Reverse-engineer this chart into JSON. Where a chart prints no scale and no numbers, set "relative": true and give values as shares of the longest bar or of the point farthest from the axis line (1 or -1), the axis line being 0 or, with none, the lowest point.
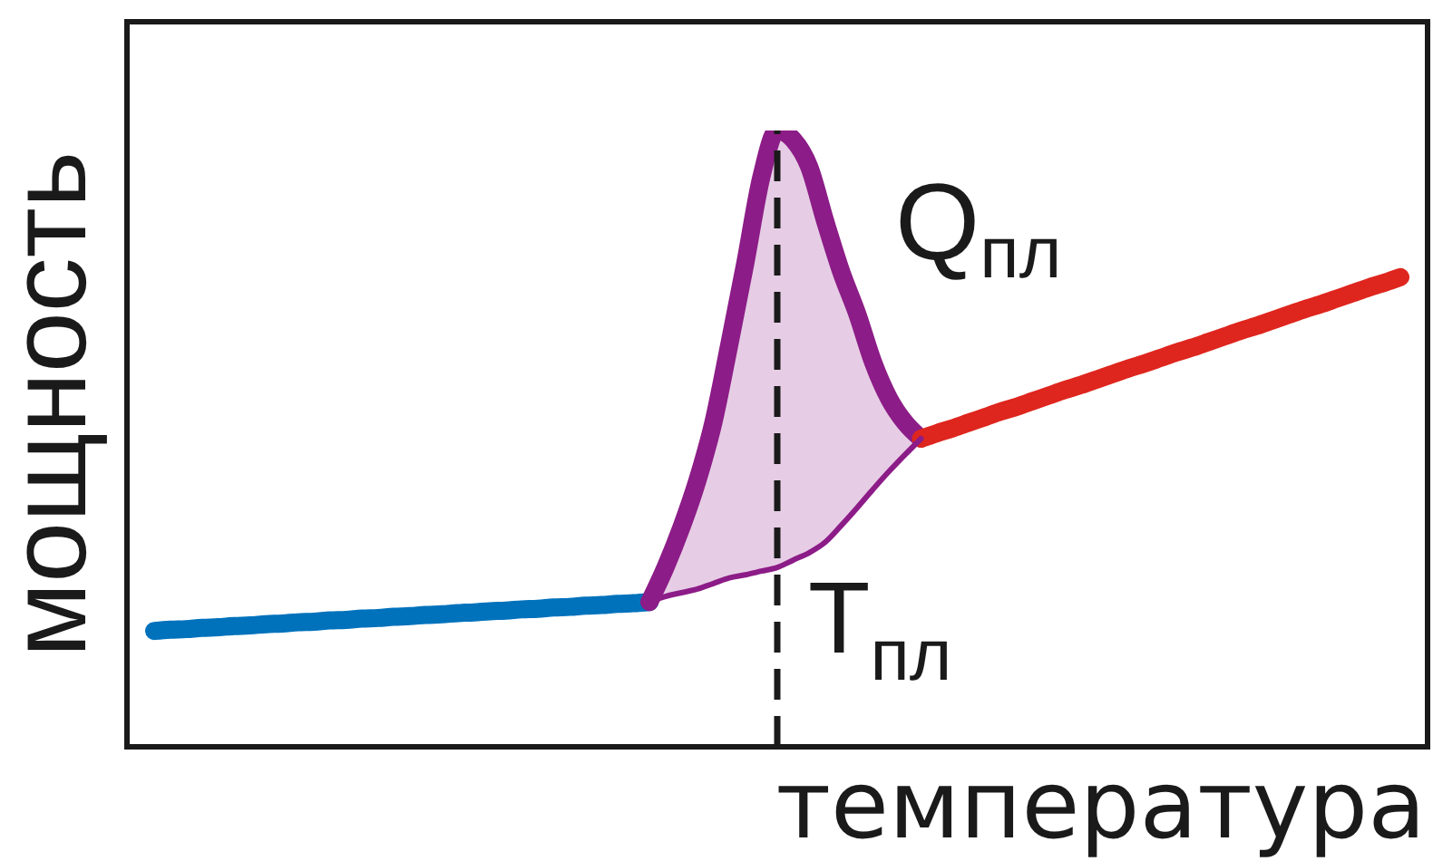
{
  "chart_data": {
    "type": "line",
    "relative": true,
    "xlabel": "температура",
    "ylabel": "мощность",
    "categories": [
      null,
      null,
      null,
      null,
      null,
      null,
      null,
      null,
      null,
      null,
      null,
      null,
      null,
      null,
      null,
      null,
      null,
      null,
      null,
      null,
      null,
      null,
      null,
      null,
      null,
      null,
      null,
      null,
      null,
      null,
      null,
      null,
      null,
      null,
      null,
      null,
      null,
      null,
      null,
      null,
      null,
      null,
      null,
      null,
      null,
      null,
      null,
      null,
      null,
      null,
      null,
      null,
      null,
      null,
      null,
      null,
      null,
      null,
      null,
      null,
      null,
      null,
      null,
      null,
      null,
      null,
      null,
      null,
      null,
      null,
      null,
      null,
      null,
      null,
      null,
      null,
      null,
      null,
      null
    ],
    "series": [
      {
        "color": "#0072bc",
        "values": [
          0.188,
          0.19,
          0.191,
          0.193,
          0.194,
          0.196,
          0.197,
          0.199,
          0.2,
          0.202,
          0.203,
          0.205,
          0.206,
          0.208,
          0.209,
          0.211,
          0.212,
          0.214,
          0.215,
          0.217,
          0.218,
          0.22,
          0.221,
          0.223,
          0.224,
          0.226,
          0.227,
          0.229,
          0.23,
          0.232,
          0.233,
          0.235,
          null,
          null,
          null,
          null,
          null,
          null,
          null,
          null,
          null,
          null,
          null,
          null,
          null,
          null,
          null,
          null,
          null,
          null,
          null,
          null,
          null,
          null,
          null,
          null,
          null,
          null,
          null,
          null,
          null,
          null,
          null,
          null,
          null,
          null,
          null,
          null,
          null,
          null,
          null,
          null,
          null,
          null,
          null,
          null,
          null,
          null,
          null
        ]
      },
      {
        "color": "#8c1c87",
        "values": [
          null,
          null,
          null,
          null,
          null,
          null,
          null,
          null,
          null,
          null,
          null,
          null,
          null,
          null,
          null,
          null,
          null,
          null,
          null,
          null,
          null,
          null,
          null,
          null,
          null,
          null,
          null,
          null,
          null,
          null,
          null,
          0.235,
          0.291,
          0.356,
          0.432,
          0.526,
          0.653,
          0.785,
          0.924,
          1,
          0.985,
          0.941,
          0.853,
          0.771,
          0.703,
          0.624,
          0.565,
          0.526,
          0.5,
          null,
          null,
          null,
          null,
          null,
          null,
          null,
          null,
          null,
          null,
          null,
          null,
          null,
          null,
          null,
          null,
          null,
          null,
          null,
          null,
          null,
          null,
          null,
          null,
          null,
          null,
          null,
          null,
          null,
          null
        ],
        "lower": [
          null,
          null,
          null,
          null,
          null,
          null,
          null,
          null,
          null,
          null,
          null,
          null,
          null,
          null,
          null,
          null,
          null,
          null,
          null,
          null,
          null,
          null,
          null,
          null,
          null,
          null,
          null,
          null,
          null,
          null,
          null,
          0.235,
          0.244,
          0.25,
          0.256,
          0.265,
          0.274,
          0.279,
          0.285,
          0.291,
          0.303,
          0.315,
          0.332,
          0.359,
          0.388,
          0.418,
          0.447,
          0.474,
          0.5,
          null,
          null,
          null,
          null,
          null,
          null,
          null,
          null,
          null,
          null,
          null,
          null,
          null,
          null,
          null,
          null,
          null,
          null,
          null,
          null,
          null,
          null,
          null,
          null,
          null,
          null,
          null,
          null,
          null,
          null
        ],
        "upper": [
          null,
          null,
          null,
          null,
          null,
          null,
          null,
          null,
          null,
          null,
          null,
          null,
          null,
          null,
          null,
          null,
          null,
          null,
          null,
          null,
          null,
          null,
          null,
          null,
          null,
          null,
          null,
          null,
          null,
          null,
          null,
          0.235,
          0.291,
          0.356,
          0.432,
          0.526,
          0.653,
          0.785,
          0.924,
          1,
          0.985,
          0.941,
          0.853,
          0.771,
          0.703,
          0.624,
          0.565,
          0.526,
          0.5,
          null,
          null,
          null,
          null,
          null,
          null,
          null,
          null,
          null,
          null,
          null,
          null,
          null,
          null,
          null,
          null,
          null,
          null,
          null,
          null,
          null,
          null,
          null,
          null,
          null,
          null,
          null,
          null,
          null,
          null
        ]
      },
      {
        "color": "#de261e",
        "values": [
          null,
          null,
          null,
          null,
          null,
          null,
          null,
          null,
          null,
          null,
          null,
          null,
          null,
          null,
          null,
          null,
          null,
          null,
          null,
          null,
          null,
          null,
          null,
          null,
          null,
          null,
          null,
          null,
          null,
          null,
          null,
          null,
          null,
          null,
          null,
          null,
          null,
          null,
          null,
          null,
          null,
          null,
          null,
          null,
          null,
          null,
          null,
          null,
          0.5,
          0.509,
          0.517,
          0.526,
          0.535,
          0.544,
          0.552,
          0.561,
          0.57,
          0.579,
          0.587,
          0.596,
          0.605,
          0.614,
          0.622,
          0.631,
          0.64,
          0.648,
          0.657,
          0.666,
          0.675,
          0.683,
          0.692,
          0.701,
          0.71,
          0.718,
          0.727,
          0.736,
          0.745,
          0.753,
          0.762
        ]
      },
      {
        "color": "#8c1c87",
        "values": [
          null,
          null,
          null,
          null,
          null,
          null,
          null,
          null,
          null,
          null,
          null,
          null,
          null,
          null,
          null,
          null,
          null,
          null,
          null,
          null,
          null,
          null,
          null,
          null,
          null,
          null,
          null,
          null,
          null,
          null,
          null,
          0.235,
          0.244,
          0.25,
          0.256,
          0.265,
          0.274,
          0.279,
          0.285,
          0.291,
          0.303,
          0.315,
          0.332,
          0.359,
          0.388,
          0.418,
          0.447,
          0.474,
          0.5,
          null,
          null,
          null,
          null,
          null,
          null,
          null,
          null,
          null,
          null,
          null,
          null,
          null,
          null,
          null,
          null,
          null,
          null,
          null,
          null,
          null,
          null,
          null,
          null,
          null,
          null,
          null,
          null,
          null,
          null
        ]
      }
    ],
    "annotations": [
      "Q$_{пл}$",
      "T$_{пл}$"
    ]
  }
}
